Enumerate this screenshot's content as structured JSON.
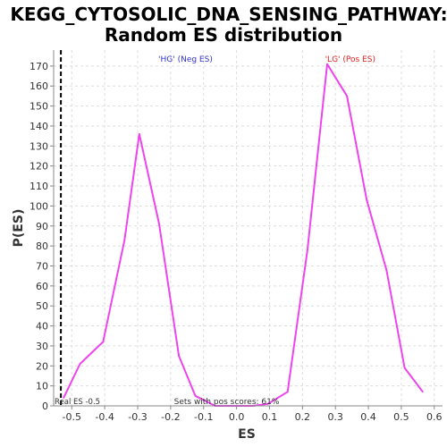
{
  "chart_data": {
    "type": "line",
    "title_line1": "KEGG_CYTOSOLIC_DNA_SENSING_PATHWAY:",
    "title_line2": "Random ES distribution",
    "xlabel": "ES",
    "ylabel": "P(ES)",
    "xlim": [
      -0.555,
      0.625
    ],
    "ylim": [
      0,
      178
    ],
    "x_ticks": [
      "-0.5",
      "-0.4",
      "-0.3",
      "-0.2",
      "-0.1",
      "0.0",
      "0.1",
      "0.2",
      "0.3",
      "0.4",
      "0.5",
      "0.6"
    ],
    "x_tick_values": [
      -0.5,
      -0.4,
      -0.3,
      -0.2,
      -0.1,
      0.0,
      0.1,
      0.2,
      0.3,
      0.4,
      0.5,
      0.6
    ],
    "y_ticks": [
      "0",
      "10",
      "20",
      "30",
      "40",
      "50",
      "60",
      "70",
      "80",
      "90",
      "100",
      "110",
      "120",
      "130",
      "140",
      "150",
      "160",
      "170"
    ],
    "y_tick_values": [
      0,
      10,
      20,
      30,
      40,
      50,
      60,
      70,
      80,
      90,
      100,
      110,
      120,
      130,
      140,
      150,
      160,
      170
    ],
    "grid": true,
    "series": [
      {
        "color": "#ee44ee",
        "x": [
          -0.525,
          -0.475,
          -0.405,
          -0.34,
          -0.295,
          -0.235,
          -0.175,
          -0.125,
          -0.065,
          0.0,
          0.05,
          0.095,
          0.155,
          0.215,
          0.275,
          0.335,
          0.395,
          0.455,
          0.51,
          0.565
        ],
        "y": [
          4,
          21,
          32,
          83,
          136,
          91,
          25,
          5,
          0,
          0,
          0,
          1,
          7,
          78,
          171,
          155,
          103,
          68,
          19,
          7
        ]
      }
    ],
    "reference_line": {
      "x": -0.533,
      "style": "dashed",
      "color": "#000000",
      "label": "Real ES -0.5"
    },
    "annotations": [
      {
        "text": "'HG' (Neg ES)",
        "color": "#3333cc",
        "x": -0.155
      },
      {
        "text": "'LG' (Pos ES)",
        "color": "#dd2222",
        "x": 0.345
      },
      {
        "text": "Sets with pos scores: 61%",
        "color": "#333333",
        "x": -0.03
      }
    ]
  }
}
